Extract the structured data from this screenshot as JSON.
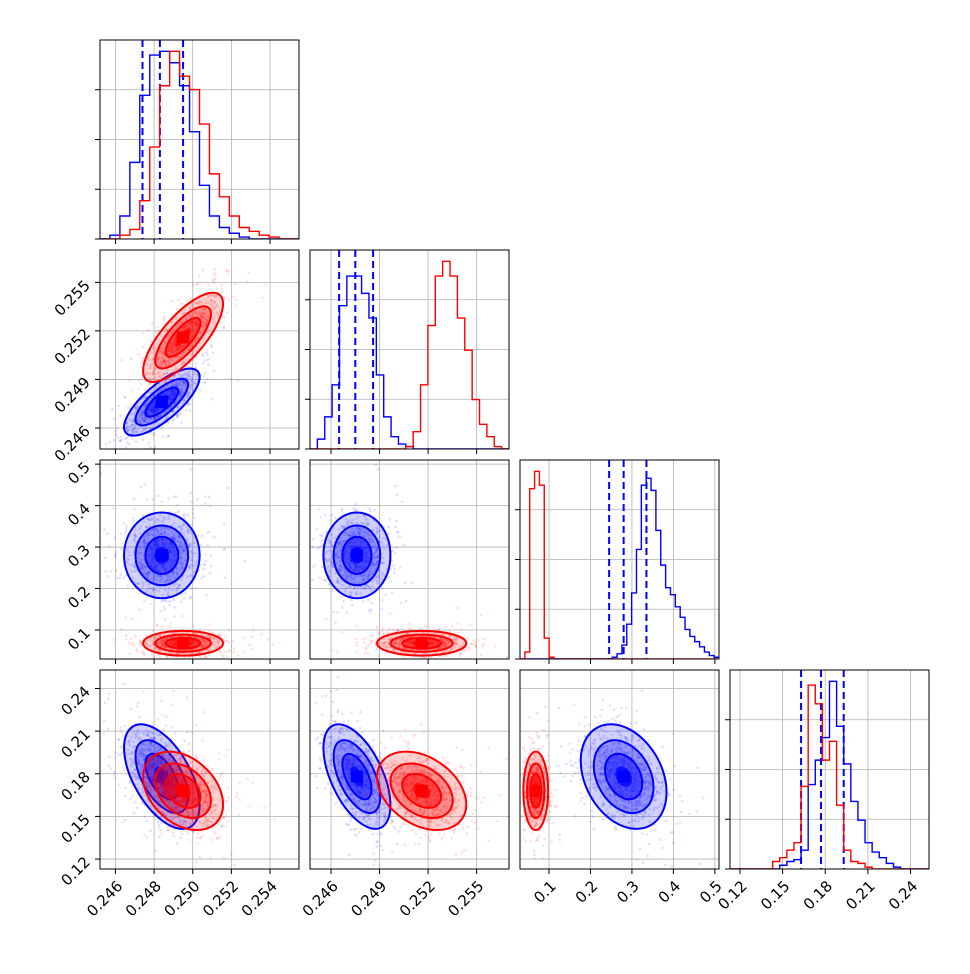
{
  "chart_data": {
    "type": "corner",
    "params": [
      {
        "ticks": [
          0.246,
          0.248,
          0.25,
          0.252,
          0.254
        ],
        "tick_labels": [
          "0.246",
          "0.248",
          "0.250",
          "0.252",
          "0.254"
        ],
        "range": [
          0.2452,
          0.2555
        ]
      },
      {
        "ticks": [
          0.246,
          0.249,
          0.252,
          0.255
        ],
        "tick_labels": [
          "0.246",
          "0.249",
          "0.252",
          "0.255"
        ],
        "range": [
          0.2447,
          0.257
        ]
      },
      {
        "ticks": [
          0.1,
          0.2,
          0.3,
          0.4,
          0.5
        ],
        "tick_labels": [
          "0.1",
          "0.2",
          "0.3",
          "0.4",
          "0.5"
        ],
        "range": [
          0.03,
          0.51
        ]
      },
      {
        "ticks": [
          0.12,
          0.15,
          0.18,
          0.21,
          0.24
        ],
        "tick_labels": [
          "0.12",
          "0.15",
          "0.18",
          "0.21",
          "0.24"
        ],
        "range": [
          0.113,
          0.253
        ]
      }
    ],
    "colors": {
      "blue": "#0000ff",
      "red": "#ff0000",
      "grid": "#b0b0b0"
    },
    "grid": true,
    "series": [
      {
        "color": "blue",
        "mean": [
          0.2484,
          0.2476,
          0.28,
          0.178
        ],
        "std": [
          0.00085,
          0.0009,
          0.045,
          0.016
        ],
        "corr": {
          "0-1": 0.75,
          "0-2": 0.0,
          "0-3": -0.55,
          "1-2": 0.0,
          "1-3": -0.55,
          "2-3": -0.3
        },
        "quantiles": [
          [
            0.2474,
            0.2483,
            0.2495
          ],
          [
            0.2465,
            0.2475,
            0.2486
          ],
          [
            0.245,
            0.28,
            0.335
          ],
          [
            0.163,
            0.177,
            0.193
          ]
        ],
        "hists": [
          [
            0,
            2,
            12,
            40,
            75,
            96,
            98,
            92,
            80,
            56,
            28,
            12,
            6,
            3,
            1,
            0,
            0,
            0,
            0,
            0
          ],
          [
            0,
            4,
            13,
            26,
            58,
            70,
            70,
            63,
            53,
            30,
            13,
            5,
            2,
            1,
            0,
            0,
            0,
            0,
            0,
            0,
            0,
            0,
            0,
            0,
            0,
            0,
            0
          ],
          [
            0,
            0,
            0,
            0,
            0,
            0,
            0,
            0,
            0,
            0,
            0,
            0,
            0,
            0,
            0,
            0,
            0,
            0,
            0,
            1,
            3,
            8,
            20,
            38,
            63,
            100,
            104,
            97,
            74,
            54,
            41,
            37,
            30,
            24,
            17,
            13,
            10,
            7,
            4,
            2,
            1
          ],
          [
            0,
            0,
            0,
            0,
            0,
            0,
            0,
            2,
            4,
            5,
            10,
            45,
            58,
            70,
            100,
            76,
            56,
            36,
            26,
            14,
            9,
            6,
            3,
            1,
            0,
            0,
            0,
            0
          ]
        ]
      },
      {
        "color": "red",
        "mean": [
          0.2495,
          0.2516,
          0.068,
          0.168
        ],
        "std": [
          0.0009,
          0.0012,
          0.013,
          0.012
        ],
        "corr": {
          "0-1": 0.75,
          "0-2": 0.0,
          "0-3": -0.35,
          "1-2": 0.0,
          "1-3": -0.35,
          "2-3": 0.0
        },
        "quantiles": [],
        "hists": [
          [
            0,
            0,
            2,
            5,
            20,
            48,
            80,
            98,
            85,
            78,
            60,
            34,
            22,
            12,
            6,
            4,
            2,
            1,
            0,
            0
          ],
          [
            0,
            0,
            0,
            0,
            0,
            0,
            0,
            0,
            0,
            0,
            0,
            0,
            0,
            1,
            7,
            26,
            50,
            70,
            76,
            70,
            53,
            40,
            20,
            10,
            5,
            1,
            0
          ],
          [
            0,
            4,
            98,
            108,
            100,
            12,
            1,
            0,
            0,
            0,
            0,
            0,
            0,
            0,
            0,
            0,
            0,
            0,
            0,
            0,
            0,
            0,
            0,
            0,
            0,
            0,
            0,
            0,
            0,
            0,
            0,
            0,
            0,
            0,
            0,
            0,
            0,
            0,
            0,
            0,
            0
          ],
          [
            0,
            0,
            0,
            0,
            0,
            0,
            4,
            6,
            10,
            14,
            44,
            98,
            88,
            58,
            68,
            34,
            10,
            4,
            3,
            1,
            0,
            0,
            0,
            0,
            0,
            0,
            0,
            0
          ]
        ]
      }
    ]
  }
}
